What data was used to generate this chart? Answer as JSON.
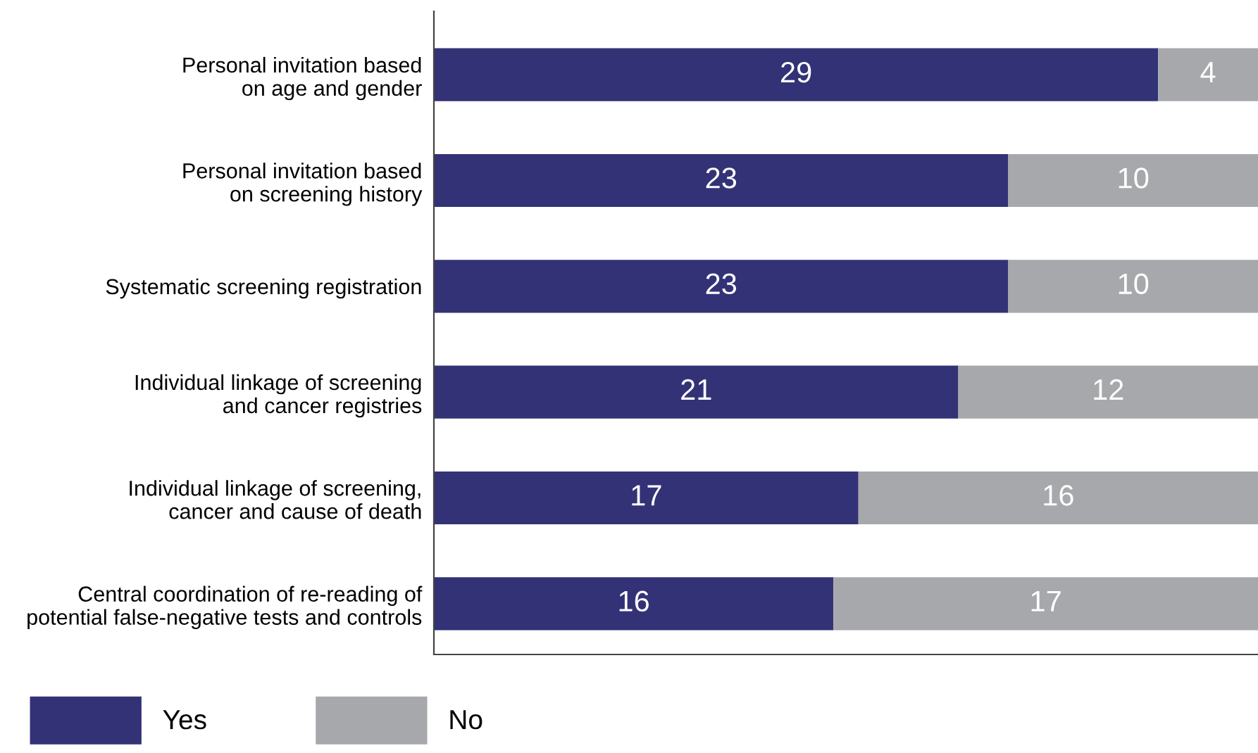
{
  "chart_data": {
    "type": "bar",
    "orientation": "horizontal",
    "stacked": true,
    "data_labels": true,
    "legend": "bottom left",
    "grid": false,
    "categories": [
      "Personal invitation based\non age and gender",
      "Personal invitation based\non screening history",
      "Systematic screening registration",
      "Individual linkage of screening\nand cancer registries",
      "Individual linkage of screening,\ncancer and cause of death",
      "Central coordination of re-reading of\npotential false-negative tests and controls"
    ],
    "series": [
      {
        "name": "Yes",
        "color": "#343276",
        "values": [
          29,
          23,
          23,
          21,
          17,
          16
        ]
      },
      {
        "name": "No",
        "color": "#a7a8ab",
        "values": [
          4,
          10,
          10,
          12,
          16,
          17
        ]
      }
    ]
  }
}
